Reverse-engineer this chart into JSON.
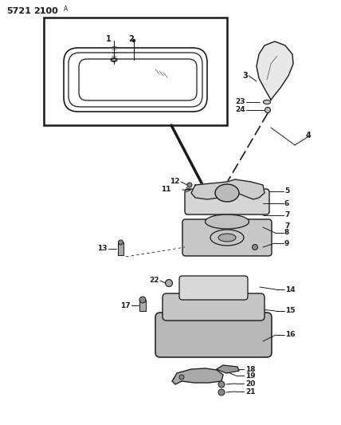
{
  "bg_color": "#ffffff",
  "line_color": "#1a1a1a",
  "text_color": "#1a1a1a",
  "fig_width": 4.28,
  "fig_height": 5.33,
  "dpi": 100,
  "title": "5721  2100",
  "title_super": "A"
}
